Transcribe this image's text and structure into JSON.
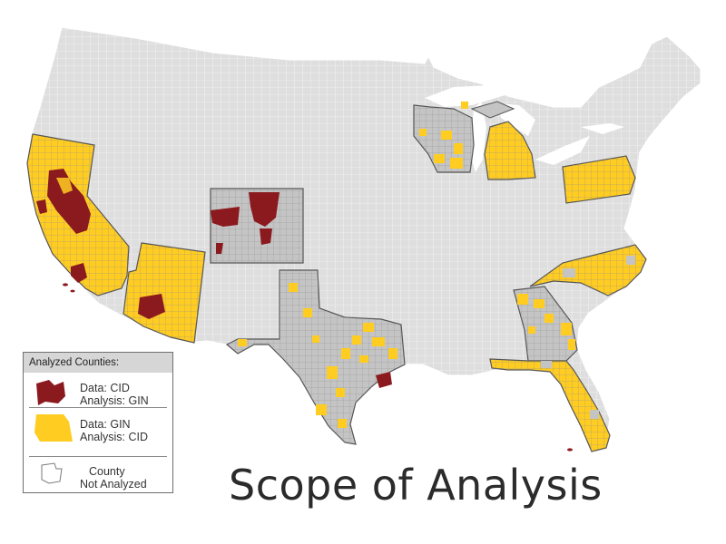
{
  "title": "Scope of Analysis",
  "colors": {
    "background": "#ffffff",
    "not_analyzed_fill": "#dedede",
    "county_lines": "#ffffff",
    "state_with_analysis_fill": "#c4c4c4",
    "state_outline": "#555555",
    "cid_gin": "#8b1a1f",
    "gin_cid": "#ffcc22",
    "water": "#ffffff"
  },
  "legend": {
    "heading": "Analyzed Counties:",
    "items": [
      {
        "line1": "Data: CID",
        "line2": "Analysis:  GIN",
        "icon": "county-shape-icon-dark-red"
      },
      {
        "line1": "Data: GIN",
        "line2": "Analysis:  CID",
        "icon": "county-shape-icon-yellow"
      },
      {
        "line1": "County",
        "line2": "Not Analyzed",
        "icon": "county-shape-icon-outline"
      }
    ]
  },
  "regions": [
    {
      "name": "California",
      "category": "mixed"
    },
    {
      "name": "Arizona",
      "category": "mixed"
    },
    {
      "name": "Colorado",
      "category": "mixed"
    },
    {
      "name": "Texas",
      "category": "mixed"
    },
    {
      "name": "Wisconsin",
      "category": "gin_cid"
    },
    {
      "name": "Michigan",
      "category": "gin_cid"
    },
    {
      "name": "Pennsylvania",
      "category": "gin_cid"
    },
    {
      "name": "North Carolina",
      "category": "gin_cid"
    },
    {
      "name": "Georgia",
      "category": "gin_cid"
    },
    {
      "name": "Florida",
      "category": "gin_cid"
    }
  ]
}
